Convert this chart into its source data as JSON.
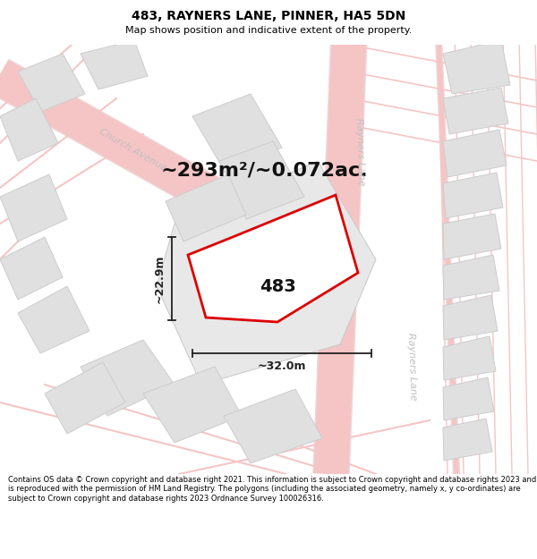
{
  "title_line1": "483, RAYNERS LANE, PINNER, HA5 5DN",
  "title_line2": "Map shows position and indicative extent of the property.",
  "area_text": "~293m²/~0.072ac.",
  "property_number": "483",
  "dim_width": "~32.0m",
  "dim_height": "~22.9m",
  "footer": "Contains OS data © Crown copyright and database right 2021. This information is subject to Crown copyright and database rights 2023 and is reproduced with the permission of HM Land Registry. The polygons (including the associated geometry, namely x, y co-ordinates) are subject to Crown copyright and database rights 2023 Ordnance Survey 100026316.",
  "bg_color": "#ffffff",
  "map_bg": "#ffffff",
  "road_line_color": "#f5c5c5",
  "road_line_color2": "#e8b0b0",
  "road_band_color": "#f0d8d8",
  "block_color": "#e0e0e0",
  "block_stroke": "#cccccc",
  "property_fill": "#ffffff",
  "property_stroke": "#dd0000",
  "dim_color": "#222222",
  "street_label_color": "#c0c0c0",
  "title_color": "#000000",
  "footer_color": "#000000",
  "title_fontsize": 10,
  "subtitle_fontsize": 8,
  "area_fontsize": 16,
  "property_label_fontsize": 14,
  "dim_fontsize": 9,
  "street_fontsize": 8,
  "footer_fontsize": 6
}
